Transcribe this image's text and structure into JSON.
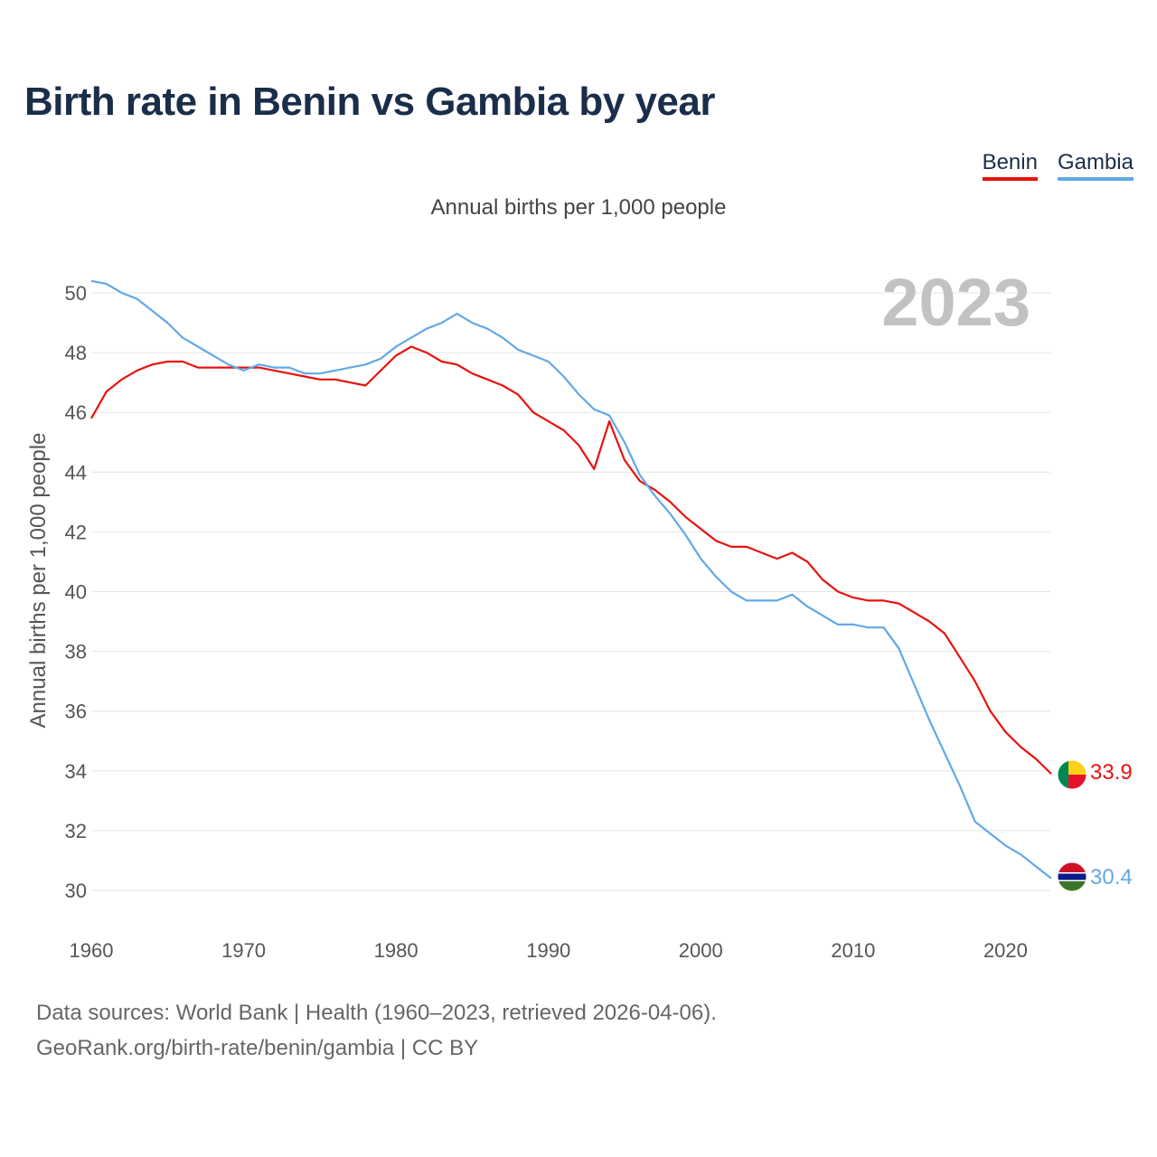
{
  "title": "Birth rate in Benin vs Gambia by year",
  "legend": [
    {
      "name": "Benin",
      "color": "#e8120c"
    },
    {
      "name": "Gambia",
      "color": "#62a8e5"
    }
  ],
  "subtitle": "Annual births per 1,000 people",
  "year_watermark": "2023",
  "footer": {
    "line1": "Data sources: World Bank | Health (1960–2023, retrieved 2026-04-06).",
    "line2": "GeoRank.org/birth-rate/benin/gambia | CC BY"
  },
  "chart_data": {
    "type": "line",
    "title": "Birth rate in Benin vs Gambia by year",
    "ylabel": "Annual births per 1,000 people",
    "xlabel": "",
    "xlim": [
      1960,
      2023
    ],
    "ylim": [
      29,
      51
    ],
    "x_ticks": [
      1960,
      1970,
      1980,
      1990,
      2000,
      2010,
      2020
    ],
    "y_ticks": [
      30,
      32,
      34,
      36,
      38,
      40,
      42,
      44,
      46,
      48,
      50
    ],
    "x_start": 1960,
    "grid": true,
    "series": [
      {
        "name": "Benin",
        "color": "#e8120c",
        "end_label": "33.9",
        "values": [
          45.8,
          46.7,
          47.1,
          47.4,
          47.6,
          47.7,
          47.7,
          47.5,
          47.5,
          47.5,
          47.5,
          47.5,
          47.4,
          47.3,
          47.2,
          47.1,
          47.1,
          47.0,
          46.9,
          47.4,
          47.9,
          48.2,
          48.0,
          47.7,
          47.6,
          47.3,
          47.1,
          46.9,
          46.6,
          46.0,
          45.7,
          45.4,
          44.9,
          44.1,
          45.7,
          44.4,
          43.7,
          43.4,
          43.0,
          42.5,
          42.1,
          41.7,
          41.5,
          41.5,
          41.3,
          41.1,
          41.3,
          41.0,
          40.4,
          40.0,
          39.8,
          39.7,
          39.7,
          39.6,
          39.3,
          39.0,
          38.6,
          37.8,
          37.0,
          36.0,
          35.3,
          34.8,
          34.4,
          33.9
        ]
      },
      {
        "name": "Gambia",
        "color": "#62a8e5",
        "end_label": "30.4",
        "values": [
          50.4,
          50.3,
          50.0,
          49.8,
          49.4,
          49.0,
          48.5,
          48.2,
          47.9,
          47.6,
          47.4,
          47.6,
          47.5,
          47.5,
          47.3,
          47.3,
          47.4,
          47.5,
          47.6,
          47.8,
          48.2,
          48.5,
          48.8,
          49.0,
          49.3,
          49.0,
          48.8,
          48.5,
          48.1,
          47.9,
          47.7,
          47.2,
          46.6,
          46.1,
          45.9,
          45.0,
          43.9,
          43.2,
          42.6,
          41.9,
          41.1,
          40.5,
          40.0,
          39.7,
          39.7,
          39.7,
          39.9,
          39.5,
          39.2,
          38.9,
          38.9,
          38.8,
          38.8,
          38.1,
          36.9,
          35.7,
          34.6,
          33.5,
          32.3,
          31.9,
          31.5,
          31.2,
          30.8,
          30.4
        ]
      }
    ]
  }
}
